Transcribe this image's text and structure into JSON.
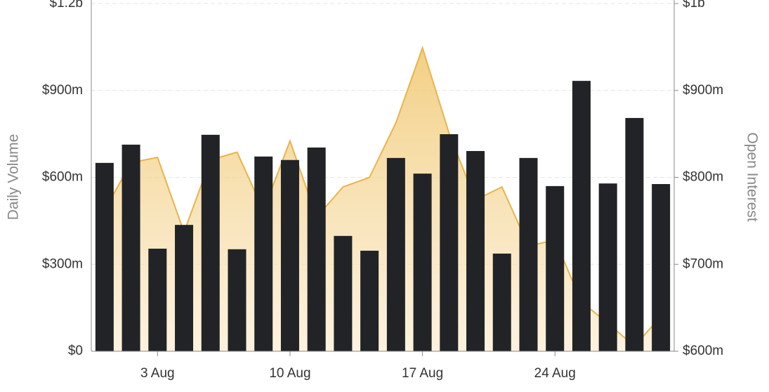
{
  "chart_data": {
    "type": "bar-area",
    "categories": [
      null,
      null,
      "3 Aug",
      null,
      null,
      null,
      null,
      "10 Aug",
      null,
      null,
      null,
      null,
      "17 Aug",
      null,
      null,
      null,
      null,
      "24 Aug",
      null,
      null,
      null,
      null
    ],
    "series": [
      {
        "name": "Daily Volume",
        "color": "#222326",
        "axis": "y",
        "values": [
          650,
          713,
          354,
          436,
          747,
          352,
          672,
          660,
          703,
          398,
          347,
          667,
          613,
          749,
          691,
          337,
          667,
          570,
          933,
          579,
          805,
          577
        ]
      },
      {
        "name": "Open Interest",
        "color": "#e9b44c",
        "axis": "y2",
        "values": [
          762,
          817,
          823,
          737,
          820,
          829,
          762,
          842,
          754,
          789,
          800,
          863,
          949,
          851,
          774,
          789,
          721,
          728,
          657,
          632,
          606,
          640
        ]
      }
    ],
    "ylim": [
      0,
      1200
    ],
    "yticks": [
      {
        "value": 0,
        "label": "$0"
      },
      {
        "value": 300,
        "label": "$300m"
      },
      {
        "value": 600,
        "label": "$600m"
      },
      {
        "value": 900,
        "label": "$900m"
      },
      {
        "value": 1200,
        "label": "$1.2b"
      }
    ],
    "y2lim": [
      600,
      1000
    ],
    "y2ticks": [
      {
        "value": 600,
        "label": "$600m"
      },
      {
        "value": 700,
        "label": "$700m"
      },
      {
        "value": 800,
        "label": "$800m"
      },
      {
        "value": 900,
        "label": "$900m"
      },
      {
        "value": 1000,
        "label": "$1b"
      }
    ],
    "grid": true
  }
}
